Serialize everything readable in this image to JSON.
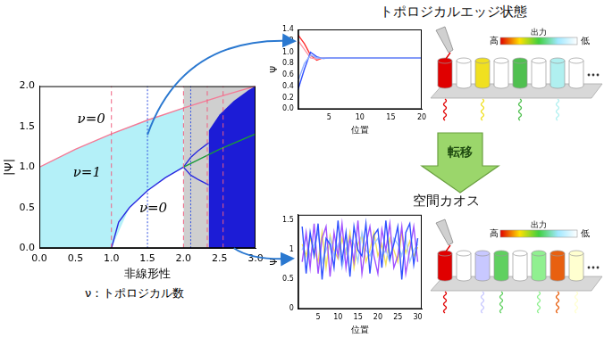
{
  "chart_data": [
    {
      "type": "line",
      "x_label": "非線形性",
      "y_label": "|Ψ|",
      "xlim": [
        0,
        3
      ],
      "xticks": [
        {
          "value": 0,
          "label": "0.0"
        },
        0.5,
        {
          "value": 1,
          "label": "1.0"
        },
        1.5,
        {
          "value": 2,
          "label": "2.0"
        },
        2.5,
        {
          "value": 3,
          "label": "3.0"
        }
      ],
      "ylim": [
        0,
        2
      ],
      "yticks": [
        {
          "value": 0,
          "label": "0.0"
        },
        0.5,
        {
          "value": 1,
          "label": "1.0"
        },
        1.5,
        {
          "value": 2,
          "label": "2.0"
        }
      ],
      "grid": false,
      "annotations": [
        {
          "text": "ν=0",
          "x": 0.72,
          "y": 1.59
        },
        {
          "text": "ν=1",
          "x": 0.66,
          "y": 0.93
        },
        {
          "text": "ν=0",
          "x": 1.58,
          "y": 0.49
        }
      ],
      "series": [
        {
          "type": "area",
          "color": "#cfcfcf",
          "x": [
            2,
            3
          ],
          "values": [
            2,
            2
          ]
        },
        {
          "type": "area",
          "color": "#b4f0f8",
          "x": [
            0,
            0.5,
            1,
            1.5,
            2
          ],
          "values": [
            1.0,
            1.22,
            1.41,
            1.58,
            1.73
          ]
        },
        {
          "type": "area",
          "color": "#ffffff",
          "x": [
            1,
            1.25,
            1.5,
            1.75,
            2
          ],
          "values": [
            0,
            0.5,
            0.71,
            0.87,
            1.0
          ]
        },
        {
          "type": "area",
          "color": "#1c1cd6",
          "x": [
            2.35,
            2.5,
            2.7,
            2.9,
            3
          ],
          "values": [
            1.45,
            1.65,
            1.82,
            1.95,
            2.0
          ]
        },
        {
          "type": "line",
          "color": "#f47a96",
          "line_style": "solid",
          "x": [
            0,
            0.5,
            1,
            1.5,
            2,
            2.5,
            3
          ],
          "values": [
            1.0,
            1.22,
            1.41,
            1.58,
            1.73,
            1.87,
            2.0
          ]
        },
        {
          "type": "line",
          "color": "#2a2ae0",
          "line_style": "solid",
          "x": [
            1,
            1.1,
            1.25,
            1.5,
            1.75,
            2
          ],
          "values": [
            0,
            0.32,
            0.5,
            0.71,
            0.87,
            1.0
          ]
        },
        {
          "type": "line",
          "color": "#2a2ae0",
          "line_style": "solid",
          "x": [
            2,
            2.1,
            2.2,
            2.35
          ],
          "values": [
            1.0,
            1.12,
            1.2,
            1.3
          ]
        },
        {
          "type": "line",
          "color": "#2a2ae0",
          "line_style": "solid",
          "x": [
            2,
            2.1,
            2.2,
            2.35
          ],
          "values": [
            1.0,
            0.9,
            0.85,
            0.78
          ]
        },
        {
          "type": "line",
          "color": "#1a9a3a",
          "line_style": "solid",
          "x": [
            2,
            2.5,
            3
          ],
          "values": [
            1.0,
            1.22,
            1.41
          ]
        },
        {
          "type": "line",
          "color": "#f06080",
          "line_style": "dashed",
          "x": [
            1,
            1
          ],
          "values": [
            0,
            2
          ]
        },
        {
          "type": "line",
          "color": "#f06080",
          "line_style": "dashed",
          "x": [
            2,
            2
          ],
          "values": [
            0,
            2
          ]
        },
        {
          "type": "line",
          "color": "#f06080",
          "line_style": "dashed",
          "x": [
            2.33,
            2.33
          ],
          "values": [
            0,
            2
          ]
        },
        {
          "type": "line",
          "color": "#f06080",
          "line_style": "dashed",
          "x": [
            2.55,
            2.55
          ],
          "values": [
            0,
            2
          ]
        },
        {
          "type": "line",
          "color": "#3050e0",
          "line_style": "dotted",
          "x": [
            1.5,
            1.5
          ],
          "values": [
            0,
            2
          ]
        },
        {
          "type": "line",
          "color": "#3050e0",
          "line_style": "dotted",
          "x": [
            2.1,
            2.1
          ],
          "values": [
            0,
            2
          ]
        }
      ]
    },
    {
      "type": "line",
      "x_label": "位置",
      "y_label": "Ψ",
      "xlim": [
        0,
        20
      ],
      "xticks": [
        5,
        10,
        15,
        20
      ],
      "ylim": [
        0,
        1.4
      ],
      "yticks": [
        {
          "value": 0,
          "label": "0.0"
        },
        0.2,
        0.4,
        0.6,
        0.8,
        {
          "value": 1,
          "label": "1.0"
        },
        1.2,
        1.4
      ],
      "grid": false,
      "x": [
        0,
        1,
        2,
        3,
        4,
        5,
        10,
        15,
        20
      ],
      "series": [
        {
          "color": "#ff3030",
          "values": [
            1.3,
            1.15,
            0.95,
            0.86,
            0.9,
            0.9,
            0.9,
            0.9,
            0.9
          ]
        },
        {
          "color": "#ff9aa8",
          "values": [
            1.2,
            1.05,
            0.9,
            0.88,
            0.9,
            0.9,
            0.9,
            0.9,
            0.9
          ]
        },
        {
          "color": "#3050ff",
          "values": [
            0.35,
            0.7,
            1.0,
            0.92,
            0.89,
            0.9,
            0.9,
            0.9,
            0.9
          ]
        },
        {
          "color": "#90b0ff",
          "values": [
            0.5,
            0.8,
            0.95,
            0.9,
            0.9,
            0.9,
            0.9,
            0.9,
            0.9
          ]
        }
      ]
    },
    {
      "type": "line",
      "x_label": "位置",
      "y_label": "Ψ",
      "xlim": [
        0,
        31
      ],
      "xticks": [
        5,
        10,
        15,
        20,
        25,
        30
      ],
      "ylim": [
        0,
        1.6
      ],
      "yticks": [
        0,
        0.5,
        1,
        1.5
      ],
      "grid": false,
      "x": [
        1,
        2,
        3,
        4,
        5,
        6,
        7,
        8,
        9,
        10,
        11,
        12,
        13,
        14,
        15,
        16,
        17,
        18,
        19,
        20,
        21,
        22,
        23,
        24,
        25,
        26,
        27,
        28,
        29,
        30
      ],
      "series": [
        {
          "color": "#f0e060",
          "values": [
            1.1,
            0.9,
            1.2,
            1.0,
            0.8,
            1.3,
            0.7,
            1.25,
            1.0,
            0.85,
            1.2,
            0.95,
            1.3,
            0.7,
            1.1,
            1.25,
            0.8,
            1.0,
            1.3,
            0.9,
            1.1,
            0.75,
            1.2,
            1.0,
            0.8,
            1.3,
            0.95,
            1.15,
            0.9,
            1.05
          ]
        },
        {
          "color": "#a0c8ff",
          "values": [
            1.0,
            1.2,
            0.9,
            1.1,
            1.3,
            0.8,
            1.0,
            1.2,
            0.9,
            1.1,
            0.7,
            1.0,
            1.2,
            1.1,
            0.8,
            1.3,
            1.0,
            0.9,
            1.1,
            1.2,
            0.9,
            1.0,
            0.8,
            1.2,
            1.1,
            0.9,
            1.2,
            0.8,
            1.0,
            1.1
          ]
        },
        {
          "color": "#a050ff",
          "values": [
            0.8,
            1.3,
            0.7,
            1.45,
            0.6,
            1.2,
            1.4,
            0.55,
            1.3,
            0.9,
            1.45,
            0.7,
            1.2,
            0.8,
            1.5,
            0.6,
            1.1,
            1.4,
            0.9,
            0.6,
            1.35,
            1.0,
            1.45,
            0.7,
            0.9,
            1.4,
            0.6,
            1.0,
            1.4,
            0.8
          ]
        },
        {
          "color": "#3050ff",
          "values": [
            1.4,
            0.6,
            1.3,
            0.9,
            1.45,
            0.5,
            1.2,
            1.1,
            0.7,
            1.5,
            0.8,
            1.3,
            0.55,
            1.4,
            1.0,
            0.9,
            1.45,
            0.6,
            1.25,
            1.35,
            0.7,
            1.5,
            0.85,
            1.1,
            1.4,
            0.5,
            1.3,
            1.45,
            0.75,
            1.2
          ]
        }
      ]
    }
  ],
  "diagram": {
    "caption": "ν：トポロジカル数",
    "transition": "転移",
    "colorbar": {
      "labels": [
        "高",
        "出力",
        "低"
      ],
      "colors": [
        "#e00000",
        "#ffe000",
        "#40d040",
        "#a0e8ff",
        "#ffffff"
      ]
    },
    "panels": [
      {
        "title": "トポロジカルエッジ状態",
        "cylinder_colors": [
          "#e00000",
          "#ffffff",
          "#f0e020",
          "#ffffff",
          "#50c050",
          "#ffffff",
          "#b0f0f0",
          "#ffffff"
        ]
      },
      {
        "title": "空間カオス",
        "cylinder_colors": [
          "#e00000",
          "#ffffff",
          "#c8c8ff",
          "#60d060",
          "#ffffff",
          "#90f090",
          "#e86010",
          "#ffffd0"
        ]
      }
    ]
  }
}
